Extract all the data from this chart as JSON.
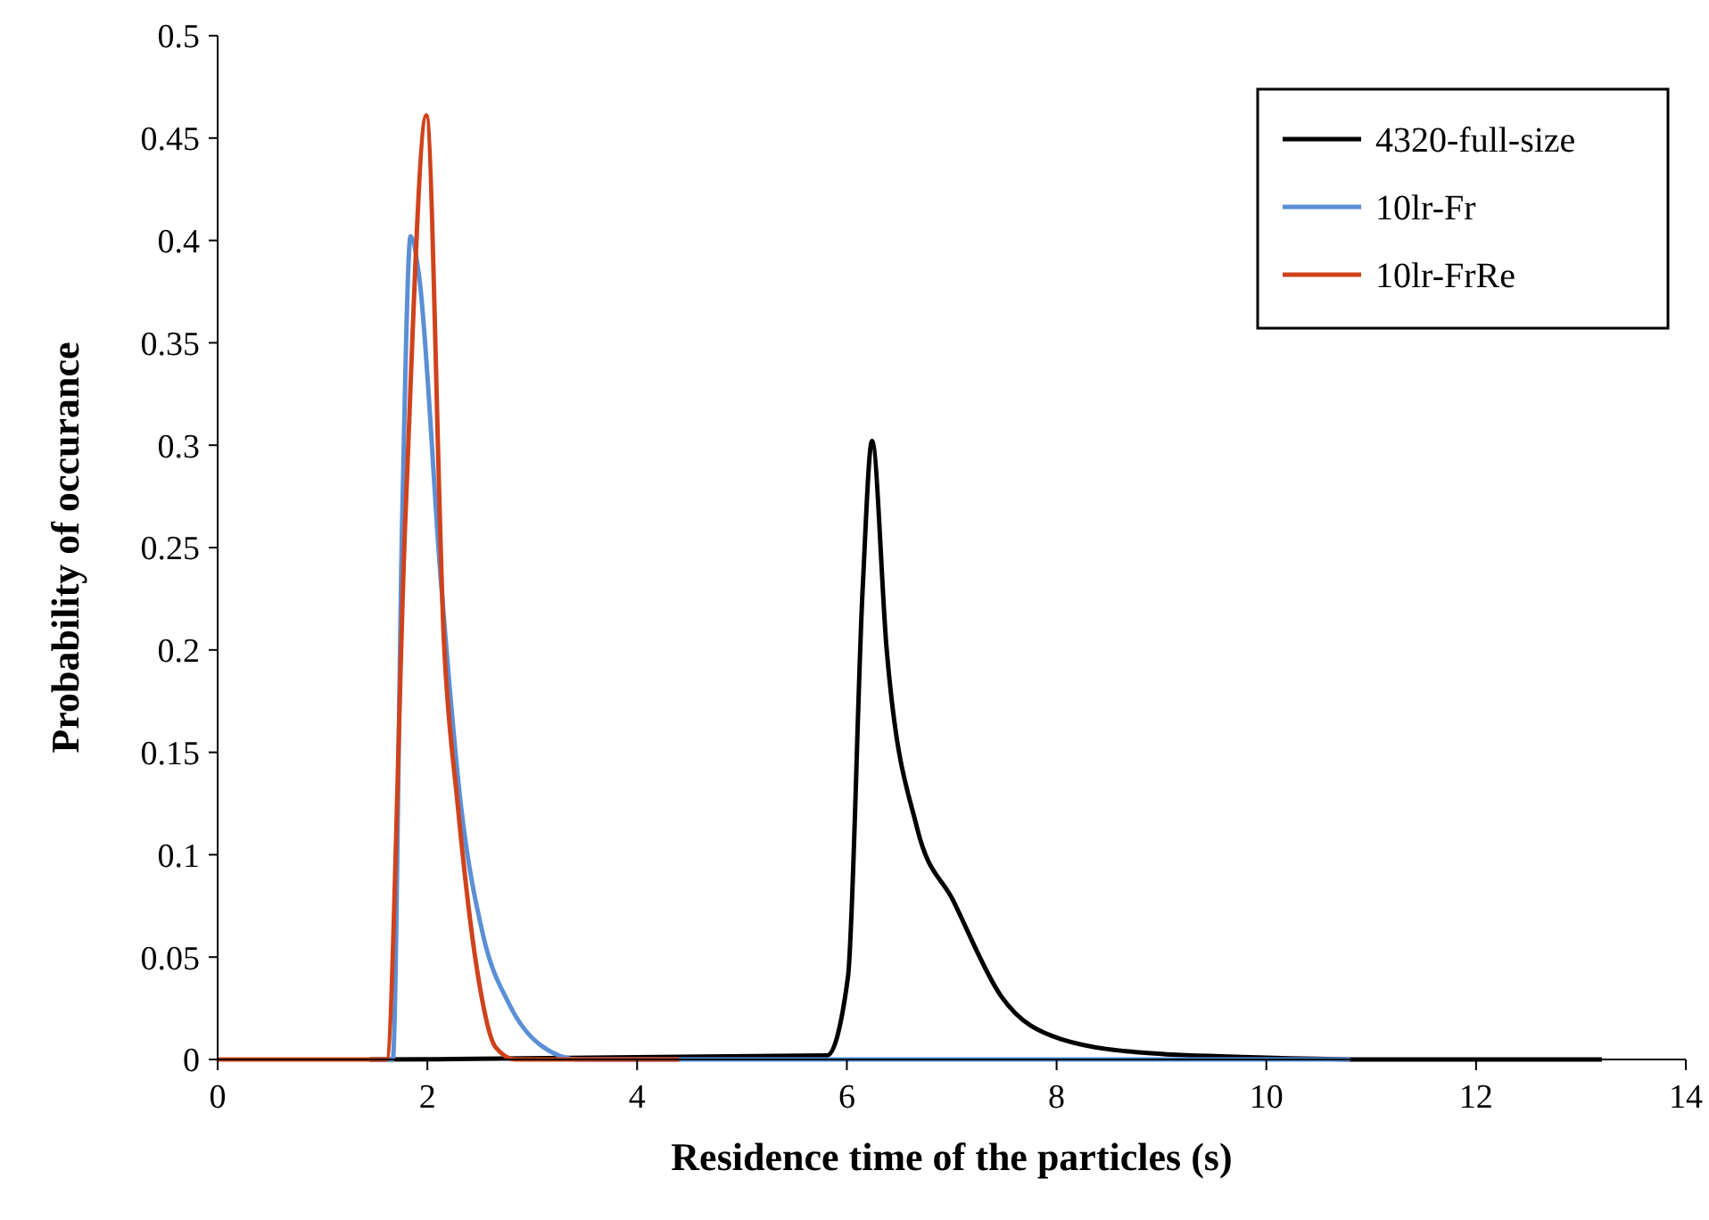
{
  "chart_data": {
    "type": "line",
    "xlabel": "Residence time of the particles (s)",
    "ylabel": "Probability of occurance",
    "xlim": [
      0,
      14
    ],
    "xticks": [
      0,
      2,
      4,
      6,
      8,
      10,
      12,
      14
    ],
    "ylim": [
      0,
      0.5
    ],
    "yticks": [
      0,
      0.05,
      0.1,
      0.15,
      0.2,
      0.25,
      0.3,
      0.35,
      0.4,
      0.45,
      0.5
    ],
    "legend": "top right",
    "grid": false,
    "marker": "none",
    "line_style": "solid",
    "series": [
      {
        "name": "4320-full-size",
        "color": "#000000",
        "x": [
          1.45,
          5.81,
          6.01,
          6.15,
          6.24,
          6.38,
          6.67,
          7.01,
          7.47,
          8.04,
          8.9,
          9.93,
          11,
          13.2
        ],
        "values": [
          0,
          0.002,
          0.04,
          0.229,
          0.302,
          0.2,
          0.113,
          0.078,
          0.031,
          0.01,
          0.003,
          0.001,
          0,
          0
        ]
      },
      {
        "name": "10lr-Fr",
        "color": "#5b8fd6",
        "x": [
          1.5,
          1.67,
          1.76,
          1.84,
          1.92,
          2.13,
          2.32,
          2.53,
          2.78,
          3.08,
          3.45,
          10.8
        ],
        "values": [
          0,
          0,
          0.264,
          0.402,
          0.383,
          0.233,
          0.124,
          0.061,
          0.027,
          0.007,
          0,
          0
        ]
      },
      {
        "name": "10lr-FrRe",
        "color": "#d0421b",
        "x": [
          0,
          1.61,
          1.79,
          1.99,
          2.16,
          2.29,
          2.47,
          2.65,
          2.84,
          4.4
        ],
        "values": [
          0,
          0,
          0.264,
          0.461,
          0.202,
          0.124,
          0.045,
          0.006,
          0,
          0
        ]
      }
    ]
  }
}
